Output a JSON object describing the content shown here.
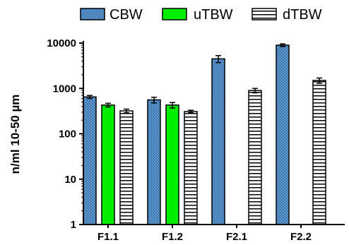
{
  "chart_data": {
    "type": "bar",
    "ylabel": "n/ml  10-50 µm",
    "xlabel": "",
    "y_scale": "log",
    "ylim": [
      1,
      10000
    ],
    "y_ticks": [
      "1",
      "10",
      "100",
      "1000",
      "10000"
    ],
    "y_tick_values": [
      1,
      10,
      100,
      1000,
      10000
    ],
    "categories": [
      "F1.1",
      "F1.2",
      "F2.1",
      "F2.2"
    ],
    "legend_position": "top",
    "grid": false,
    "series": [
      {
        "name": "CBW",
        "fill": "dotted",
        "color": "#5b9bd5",
        "values": [
          650,
          560,
          4500,
          9000
        ],
        "error": [
          50,
          80,
          800,
          600
        ]
      },
      {
        "name": "uTBW",
        "fill": "solid",
        "color": "#00ee00",
        "values": [
          430,
          430,
          null,
          null
        ],
        "error": [
          40,
          60,
          null,
          null
        ]
      },
      {
        "name": "dTBW",
        "fill": "horizontal-lines",
        "color": "#000000",
        "values": [
          320,
          310,
          900,
          1500
        ],
        "error": [
          30,
          20,
          100,
          200
        ]
      }
    ]
  }
}
